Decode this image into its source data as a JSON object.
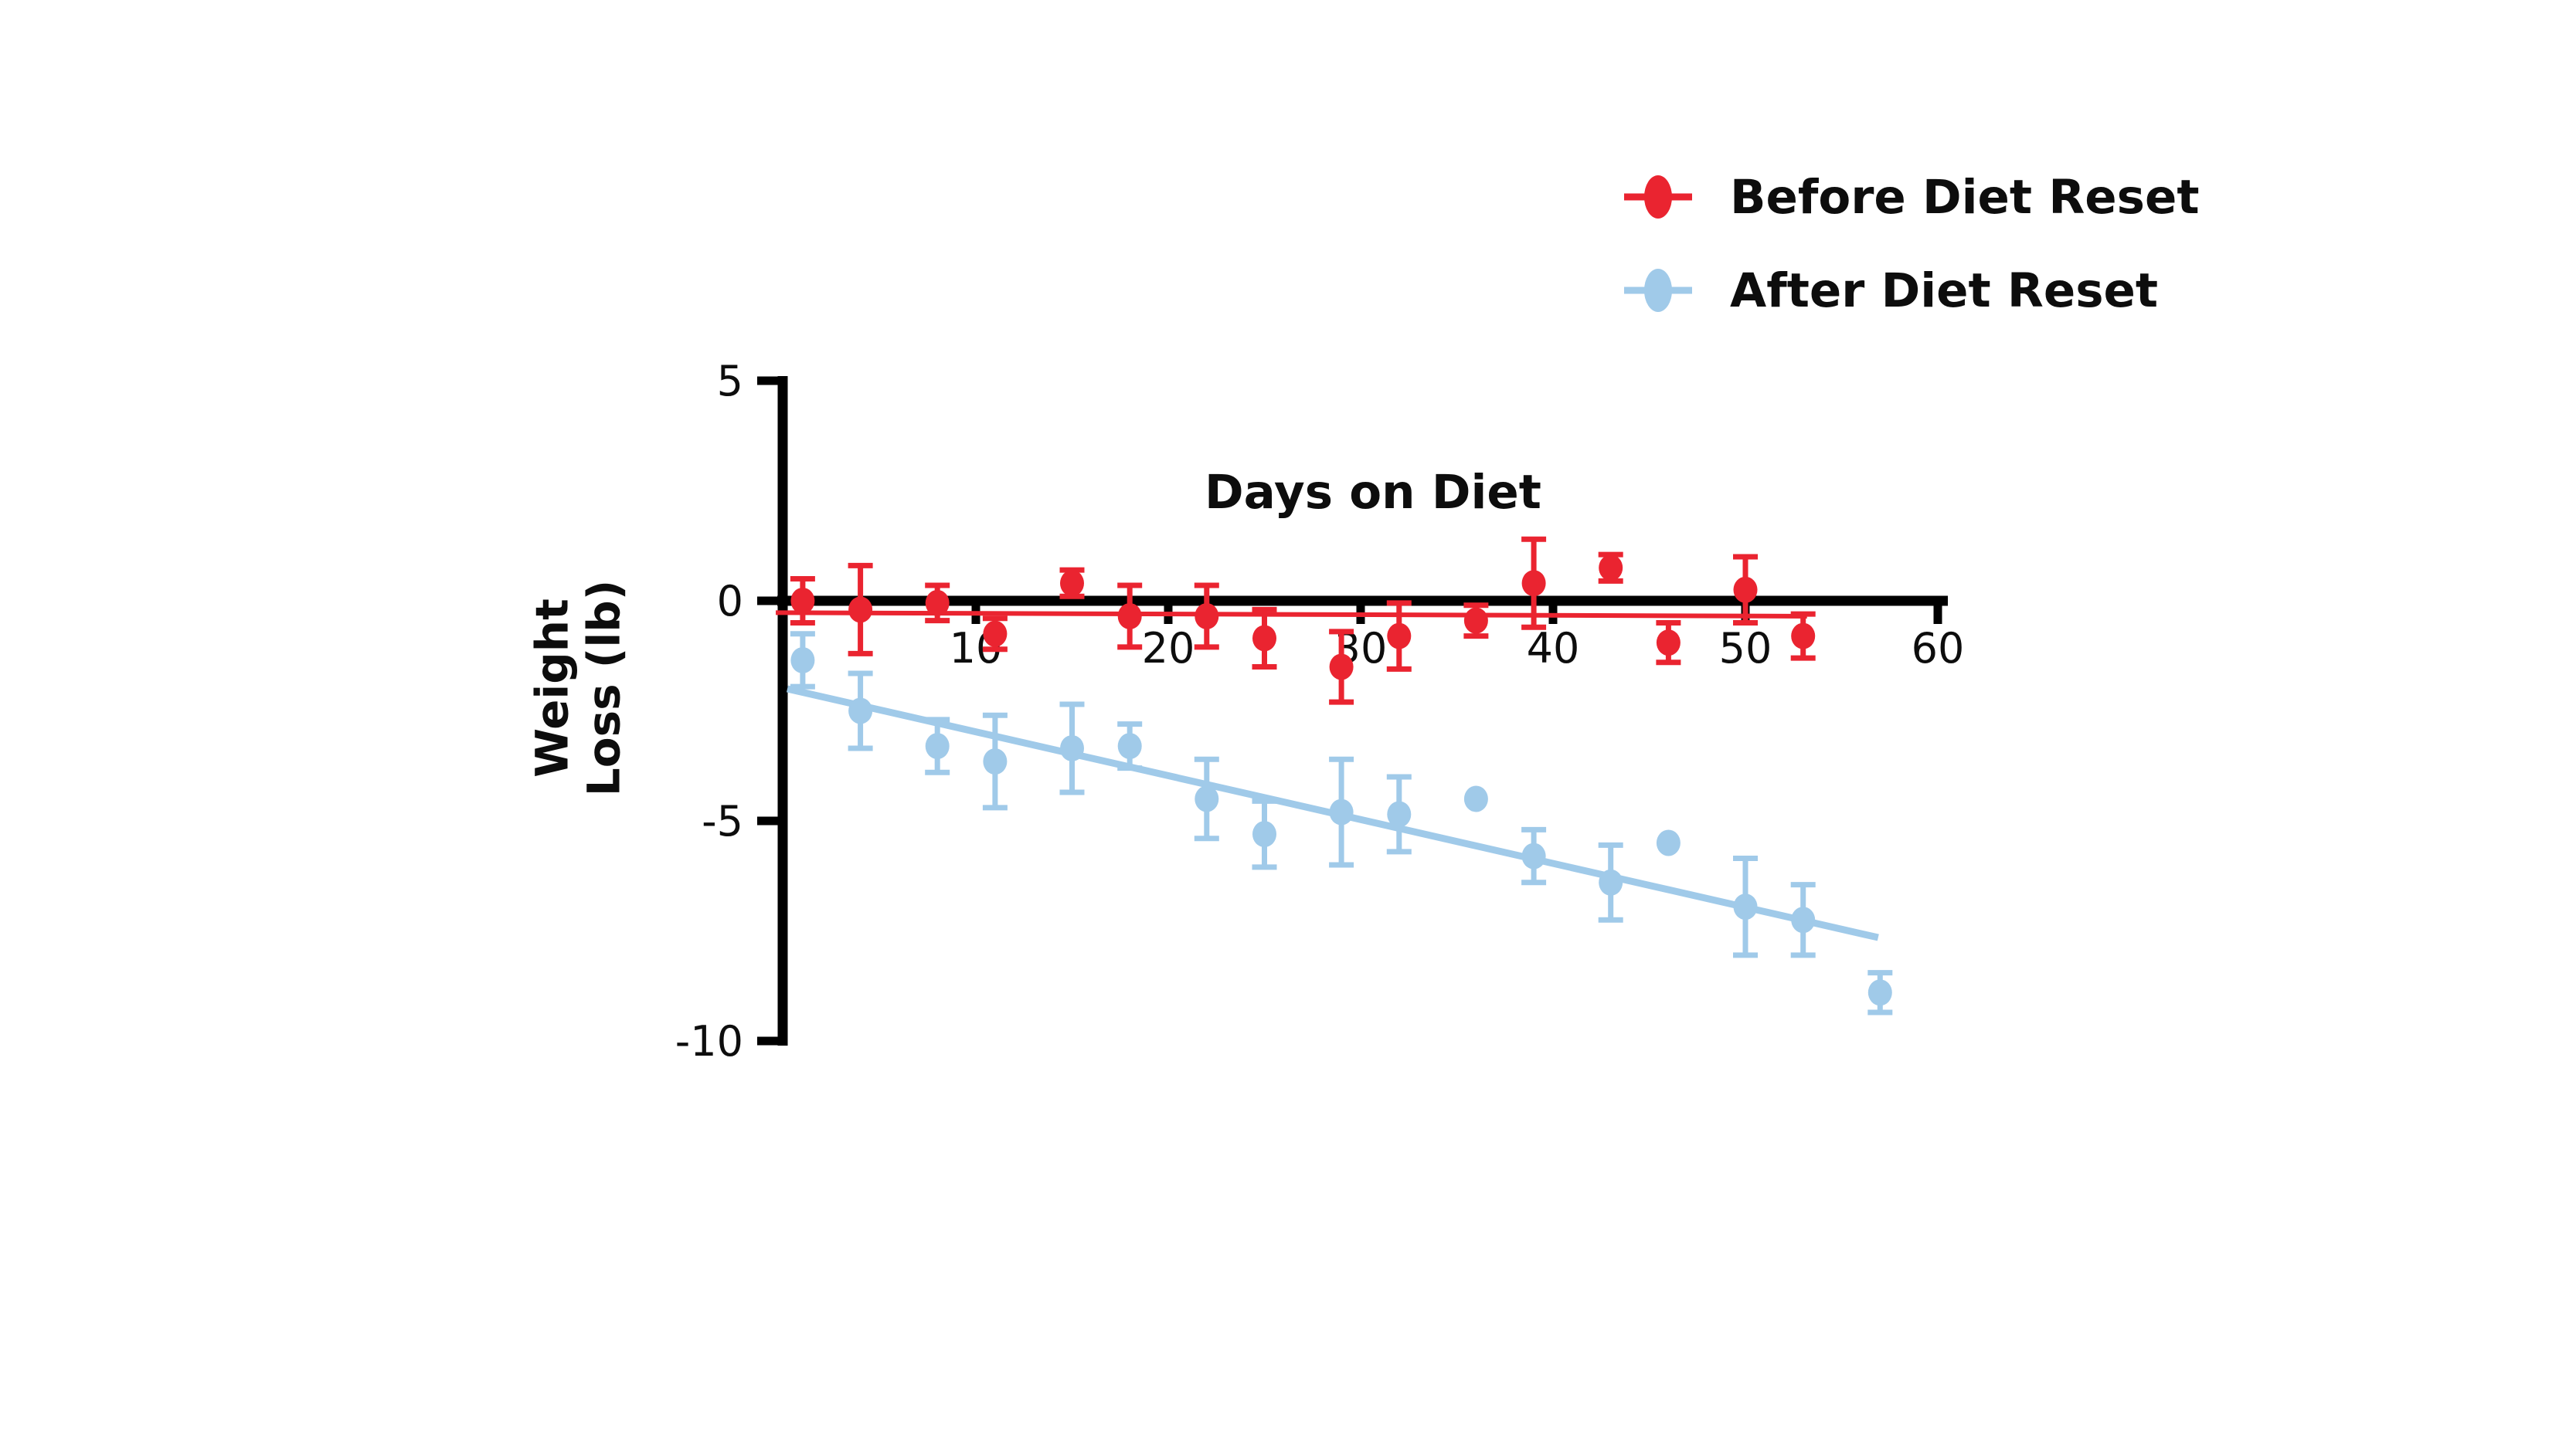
{
  "chart": {
    "background": "#ffffff",
    "axis_color": "#000000",
    "text_color": "#0d0d0d"
  },
  "chart_data": {
    "type": "scatter",
    "title": "Days on Diet",
    "xlabel": "Days on Diet",
    "ylabel": "Weight Loss (lb)",
    "ylabel_lines": [
      "Weight",
      "Loss (lb)"
    ],
    "xlim": [
      0,
      60
    ],
    "ylim": [
      -10,
      5
    ],
    "x_ticks": [
      10,
      20,
      30,
      40,
      50,
      60
    ],
    "y_ticks": [
      5,
      0,
      -5,
      -10
    ],
    "grid": false,
    "error_bars": true,
    "legend_position": "top-right",
    "series": [
      {
        "name": "Before Diet Reset",
        "color": "#EA2430",
        "marker": "circle",
        "x": [
          1,
          4,
          8,
          11,
          15,
          18,
          22,
          25,
          29,
          32,
          36,
          39,
          43,
          46,
          50,
          53
        ],
        "y": [
          0.0,
          -0.2,
          -0.05,
          -0.75,
          0.4,
          -0.35,
          -0.35,
          -0.85,
          -1.5,
          -0.8,
          -0.45,
          0.4,
          0.75,
          -0.95,
          0.25,
          -0.8
        ],
        "yerr": [
          0.5,
          1.0,
          0.4,
          0.35,
          0.3,
          0.7,
          0.7,
          0.65,
          0.8,
          0.75,
          0.35,
          1.0,
          0.3,
          0.45,
          0.75,
          0.5
        ],
        "trendline": {
          "x1": -0.4,
          "y1": -0.27,
          "x2": 53.2,
          "y2": -0.35
        }
      },
      {
        "name": "After Diet Reset",
        "color": "#A0CAE9",
        "marker": "circle",
        "x": [
          1,
          4,
          8,
          11,
          15,
          18,
          22,
          25,
          29,
          32,
          36,
          39,
          43,
          46,
          50,
          53,
          57
        ],
        "y": [
          -1.35,
          -2.5,
          -3.3,
          -3.65,
          -3.35,
          -3.3,
          -4.5,
          -5.3,
          -4.8,
          -4.85,
          -4.5,
          -5.8,
          -6.4,
          -5.5,
          -6.95,
          -7.25,
          -8.9
        ],
        "yerr": [
          0.6,
          0.85,
          0.6,
          1.05,
          1.0,
          0.5,
          0.9,
          0.75,
          1.2,
          0.85,
          0,
          0.6,
          0.85,
          0,
          1.1,
          0.8,
          0.45
        ],
        "trendline": {
          "x1": 0.2,
          "y1": -2.0,
          "x2": 56.9,
          "y2": -7.65
        }
      }
    ]
  }
}
